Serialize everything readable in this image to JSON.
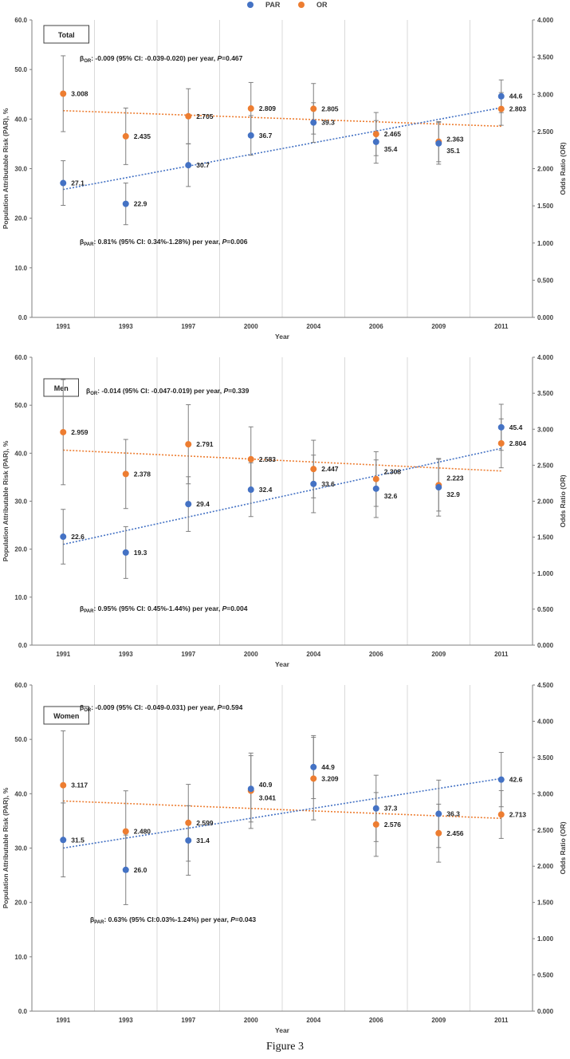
{
  "legend": [
    {
      "name": "PAR",
      "color": "#4472C4"
    },
    {
      "name": "OR",
      "color": "#ED7D31"
    }
  ],
  "caption": "Figure 3",
  "chart_data": [
    {
      "type": "scatter",
      "title": "Total",
      "xlabel": "Year",
      "ylabel": "Population Attributable Risk (PAR), %",
      "y2label": "Odds Ratio (OR)",
      "categories": [
        "1991",
        "1993",
        "1997",
        "2000",
        "2004",
        "2006",
        "2009",
        "2011"
      ],
      "ylim": [
        0,
        60
      ],
      "y2lim": [
        0,
        4
      ],
      "yticks": [
        "0.0",
        "10.0",
        "20.0",
        "30.0",
        "40.0",
        "50.0",
        "60.0"
      ],
      "y2ticks": [
        "0.000",
        "0.500",
        "1.000",
        "1.500",
        "2.000",
        "2.500",
        "3.000",
        "3.500",
        "4.000"
      ],
      "series": [
        {
          "name": "PAR",
          "axis": "left",
          "color": "#4472C4",
          "values": [
            27.1,
            22.9,
            30.7,
            36.7,
            39.3,
            35.4,
            35.1,
            44.6
          ],
          "labels": [
            "27.1",
            "22.9",
            "30.7",
            "36.7",
            "39.3",
            "35.4",
            "35.1",
            "44.6"
          ],
          "err": [
            4.5,
            4.2,
            4.3,
            4.0,
            4.0,
            4.3,
            4.2,
            3.3
          ],
          "trend": [
            25.8,
            42.3
          ]
        },
        {
          "name": "OR",
          "axis": "right",
          "color": "#ED7D31",
          "values": [
            3.008,
            2.435,
            2.705,
            2.809,
            2.805,
            2.465,
            2.363,
            2.803
          ],
          "labels": [
            "3.008",
            "2.435",
            "2.705",
            "2.809",
            "2.805",
            "2.465",
            "2.363",
            "2.803"
          ],
          "err": [
            0.51,
            0.38,
            0.37,
            0.35,
            0.34,
            0.29,
            0.27,
            0.22
          ],
          "trend": [
            2.78,
            2.57
          ]
        }
      ],
      "annotations": {
        "or_sub": "OR",
        "or_text": ": -0.009 (95% CI: -0.039-0.020) per year, ",
        "or_p": "=0.467",
        "par_sub": "PAR",
        "par_text": ": 0.81% (95% CI: 0.34%-1.28%) per year, ",
        "par_p": "=0.006"
      }
    },
    {
      "type": "scatter",
      "title": "Men",
      "xlabel": "Year",
      "ylabel": "Population Attributable Risk (PAR), %",
      "y2label": "Odds Ratio (OR)",
      "categories": [
        "1991",
        "1993",
        "1997",
        "2000",
        "2004",
        "2006",
        "2009",
        "2011"
      ],
      "ylim": [
        0,
        60
      ],
      "y2lim": [
        0,
        4
      ],
      "yticks": [
        "0.0",
        "10.0",
        "20.0",
        "30.0",
        "40.0",
        "50.0",
        "60.0"
      ],
      "y2ticks": [
        "0.000",
        "0.500",
        "1.000",
        "1.500",
        "2.000",
        "2.500",
        "3.000",
        "3.500",
        "4.000"
      ],
      "series": [
        {
          "name": "PAR",
          "axis": "left",
          "color": "#4472C4",
          "values": [
            22.6,
            19.3,
            29.4,
            32.4,
            33.6,
            32.6,
            32.9,
            45.4
          ],
          "labels": [
            "22.6",
            "19.3",
            "29.4",
            "32.4",
            "33.6",
            "32.6",
            "32.9",
            "45.4"
          ],
          "err": [
            5.7,
            5.4,
            5.7,
            5.6,
            6.0,
            6.0,
            6.0,
            4.8
          ],
          "trend": [
            21.0,
            41.0
          ]
        },
        {
          "name": "OR",
          "axis": "right",
          "color": "#ED7D31",
          "values": [
            2.959,
            2.378,
            2.791,
            2.583,
            2.447,
            2.308,
            2.223,
            2.804
          ],
          "labels": [
            "2.959",
            "2.378",
            "2.791",
            "2.583",
            "2.447",
            "2.308",
            "2.223",
            "2.804"
          ],
          "err": [
            0.73,
            0.48,
            0.55,
            0.45,
            0.4,
            0.38,
            0.36,
            0.34
          ],
          "trend": [
            2.71,
            2.42
          ]
        }
      ],
      "annotations": {
        "or_sub": "OR",
        "or_text": ": -0.014 (95% CI: -0.047-0.019) per year, ",
        "or_p": "=0.339",
        "par_sub": "PAR",
        "par_text": ": 0.95% (95% CI: 0.45%-1.44%) per year, ",
        "par_p": "=0.004"
      }
    },
    {
      "type": "scatter",
      "title": "Women",
      "xlabel": "Year",
      "ylabel": "Population Attributable Risk (PAR), %",
      "y2label": "Odds Ratio (OR)",
      "categories": [
        "1991",
        "1993",
        "1997",
        "2000",
        "2004",
        "2006",
        "2009",
        "2011"
      ],
      "ylim": [
        0,
        60
      ],
      "y2lim": [
        0,
        4.5
      ],
      "yticks": [
        "0.0",
        "10.0",
        "20.0",
        "30.0",
        "40.0",
        "50.0",
        "60.0"
      ],
      "y2ticks": [
        "0.000",
        "0.500",
        "1.000",
        "1.500",
        "2.000",
        "2.500",
        "3.000",
        "3.500",
        "4.000",
        "4.500"
      ],
      "series": [
        {
          "name": "PAR",
          "axis": "left",
          "color": "#4472C4",
          "values": [
            31.5,
            26.0,
            31.4,
            40.9,
            44.9,
            37.3,
            36.3,
            42.6
          ],
          "labels": [
            "31.5",
            "26.0",
            "31.4",
            "40.9",
            "44.9",
            "37.3",
            "36.3",
            "42.6"
          ],
          "err": [
            6.8,
            6.4,
            6.4,
            6.1,
            5.8,
            6.1,
            6.2,
            5.0
          ],
          "trend": [
            30.0,
            42.8
          ]
        },
        {
          "name": "OR",
          "axis": "right",
          "color": "#ED7D31",
          "values": [
            3.117,
            2.48,
            2.599,
            3.041,
            3.209,
            2.576,
            2.456,
            2.713
          ],
          "labels": [
            "3.117",
            "2.480",
            "2.599",
            "3.041",
            "3.209",
            "2.576",
            "2.456",
            "2.713"
          ],
          "err": [
            0.75,
            0.56,
            0.53,
            0.52,
            0.57,
            0.44,
            0.4,
            0.33
          ],
          "trend": [
            2.9,
            2.66
          ]
        }
      ],
      "annotations": {
        "or_sub": "OR",
        "or_text": ": -0.009 (95% CI: -0.049-0.031) per year, ",
        "or_p": "=0.594",
        "par_sub": "PAR",
        "par_text": ": 0.63% (95% CI:0.03%-1.24%) per year, ",
        "par_p": "=0.043"
      }
    }
  ]
}
